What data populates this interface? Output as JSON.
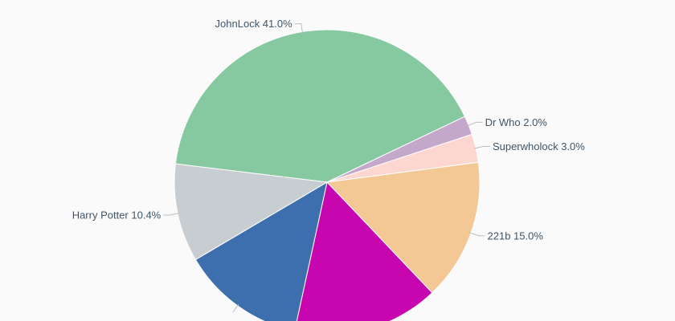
{
  "chart_data": {
    "type": "pie",
    "title": "",
    "slices": [
      {
        "name": "JohnLock",
        "value": 41.0,
        "label": "JohnLock 41.0%",
        "color": "#86c8a0"
      },
      {
        "name": "Dr Who",
        "value": 2.0,
        "label": "Dr Who 2.0%",
        "color": "#c4a8cb"
      },
      {
        "name": "Superwholock",
        "value": 3.0,
        "label": "Superwholock 3.0%",
        "color": "#fdd6d0"
      },
      {
        "name": "221b",
        "value": 15.0,
        "label": "221b 15.0%",
        "color": "#f3c895"
      },
      {
        "name": "",
        "value": 15.5,
        "label": "",
        "color": "#c806b0"
      },
      {
        "name": "",
        "value": 13.1,
        "label": "",
        "color": "#3d6eae"
      },
      {
        "name": "Harry Potter",
        "value": 10.4,
        "label": "Harry Potter 10.4%",
        "color": "#c7cdd0"
      }
    ]
  }
}
